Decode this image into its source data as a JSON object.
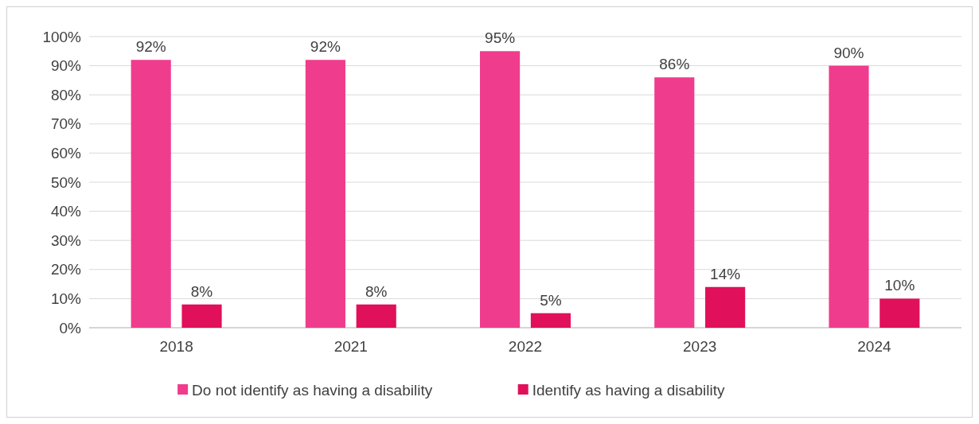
{
  "chart_data": {
    "type": "bar",
    "categories": [
      "2018",
      "2021",
      "2022",
      "2023",
      "2024"
    ],
    "series": [
      {
        "name": "Do not identify as having a disability",
        "color": "#f03c8c",
        "values": [
          92,
          92,
          95,
          86,
          90
        ],
        "value_labels": [
          "92%",
          "92%",
          "95%",
          "86%",
          "90%"
        ]
      },
      {
        "name": "Identify as having a disability",
        "color": "#e0105a",
        "values": [
          8,
          8,
          5,
          14,
          10
        ],
        "value_labels": [
          "8%",
          "8%",
          "5%",
          "14%",
          "10%"
        ]
      }
    ],
    "ylim": [
      0,
      100
    ],
    "yticks": [
      {
        "value": 0,
        "label": "0%"
      },
      {
        "value": 10,
        "label": "10%"
      },
      {
        "value": 20,
        "label": "20%"
      },
      {
        "value": 30,
        "label": "30%"
      },
      {
        "value": 40,
        "label": "40%"
      },
      {
        "value": 50,
        "label": "50%"
      },
      {
        "value": 60,
        "label": "60%"
      },
      {
        "value": 70,
        "label": "70%"
      },
      {
        "value": 80,
        "label": "80%"
      },
      {
        "value": 90,
        "label": "90%"
      },
      {
        "value": 100,
        "label": "100%"
      }
    ],
    "grid": "y",
    "legend": "bottom"
  }
}
